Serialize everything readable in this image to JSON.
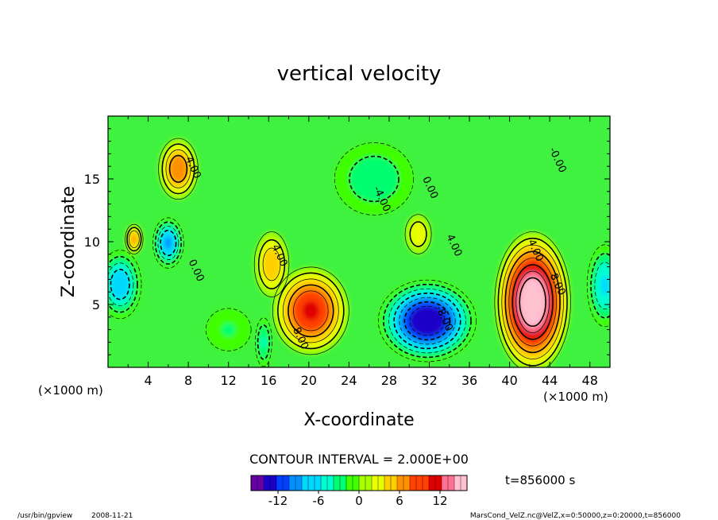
{
  "chart_data": {
    "type": "heatmap",
    "title": "vertical velocity",
    "xlabel": "X-coordinate",
    "ylabel": "Z-coordinate",
    "x_unit_left": "(×1000 m)",
    "x_unit_right": "(×1000 m)",
    "xlim": [
      0,
      50
    ],
    "ylim": [
      0,
      20
    ],
    "xticks": [
      4,
      8,
      12,
      16,
      20,
      24,
      28,
      32,
      36,
      40,
      44,
      48
    ],
    "yticks": [
      5,
      10,
      15
    ],
    "grid": false,
    "contour_interval_label": "CONTOUR INTERVAL = 2.000E+00",
    "time_label": "t=856000 s",
    "colorbar": {
      "min": -16,
      "max": 16,
      "ticks": [
        -12,
        -6,
        0,
        6,
        12
      ],
      "colors": [
        "#6a00a8",
        "#1a00c8",
        "#0040ff",
        "#0090ff",
        "#00d8ff",
        "#00ffd0",
        "#00ff70",
        "#40ff00",
        "#a8ff00",
        "#e8ff00",
        "#ffd000",
        "#ff9000",
        "#ff4000",
        "#e00000",
        "#ff7090",
        "#ffc0d0"
      ]
    },
    "contour_labels": [
      {
        "x": 8.2,
        "z": 15.8,
        "text": "4.00"
      },
      {
        "x": 16.8,
        "z": 8.8,
        "text": "4.00"
      },
      {
        "x": 27.0,
        "z": 13.3,
        "text": "-4.00"
      },
      {
        "x": 31.8,
        "z": 14.2,
        "text": "0.00"
      },
      {
        "x": 34.2,
        "z": 9.6,
        "text": "4.00"
      },
      {
        "x": 44.5,
        "z": 16.4,
        "text": "-0.00"
      },
      {
        "x": 8.5,
        "z": 7.6,
        "text": "0.00"
      },
      {
        "x": 42.3,
        "z": 9.2,
        "text": "4.00"
      },
      {
        "x": 44.5,
        "z": 6.5,
        "text": "8.00"
      },
      {
        "x": 33.2,
        "z": 3.8,
        "text": "-8.00"
      },
      {
        "x": 18.9,
        "z": 2.2,
        "text": "8.00"
      }
    ],
    "features": [
      {
        "x": 42.3,
        "z": 5.2,
        "value": 16,
        "sx": 2.3,
        "sz": 3.4
      },
      {
        "x": 20.2,
        "z": 4.5,
        "value": 11,
        "sx": 2.4,
        "sz": 2.2
      },
      {
        "x": 31.8,
        "z": 3.7,
        "value": -14,
        "sx": 3.0,
        "sz": 2.0
      },
      {
        "x": 7.0,
        "z": 15.8,
        "value": 8,
        "sx": 1.3,
        "sz": 1.6
      },
      {
        "x": 6.0,
        "z": 9.9,
        "value": -9,
        "sx": 1.0,
        "sz": 1.3
      },
      {
        "x": 2.6,
        "z": 10.2,
        "value": 7,
        "sx": 0.6,
        "sz": 0.8
      },
      {
        "x": 1.2,
        "z": 6.6,
        "value": -8,
        "sx": 1.4,
        "sz": 1.8
      },
      {
        "x": 49.5,
        "z": 6.5,
        "value": -7,
        "sx": 1.2,
        "sz": 2.2
      },
      {
        "x": 16.3,
        "z": 8.2,
        "value": 6,
        "sx": 1.2,
        "sz": 1.8
      },
      {
        "x": 30.9,
        "z": 10.6,
        "value": 4,
        "sx": 1.0,
        "sz": 1.2
      },
      {
        "x": 26.5,
        "z": 15.0,
        "value": -4,
        "sx": 3.0,
        "sz": 2.2
      },
      {
        "x": 15.5,
        "z": 2.0,
        "value": -5,
        "sx": 0.6,
        "sz": 1.4
      },
      {
        "x": 12.0,
        "z": 3.0,
        "value": -2.5,
        "sx": 2.0,
        "sz": 1.5
      }
    ]
  },
  "footer": {
    "program": "/usr/bin/gpview",
    "date": "2008-11-21",
    "dataset": "MarsCond_VelZ.nc@VelZ,x=0:50000,z=0:20000,t=856000"
  }
}
